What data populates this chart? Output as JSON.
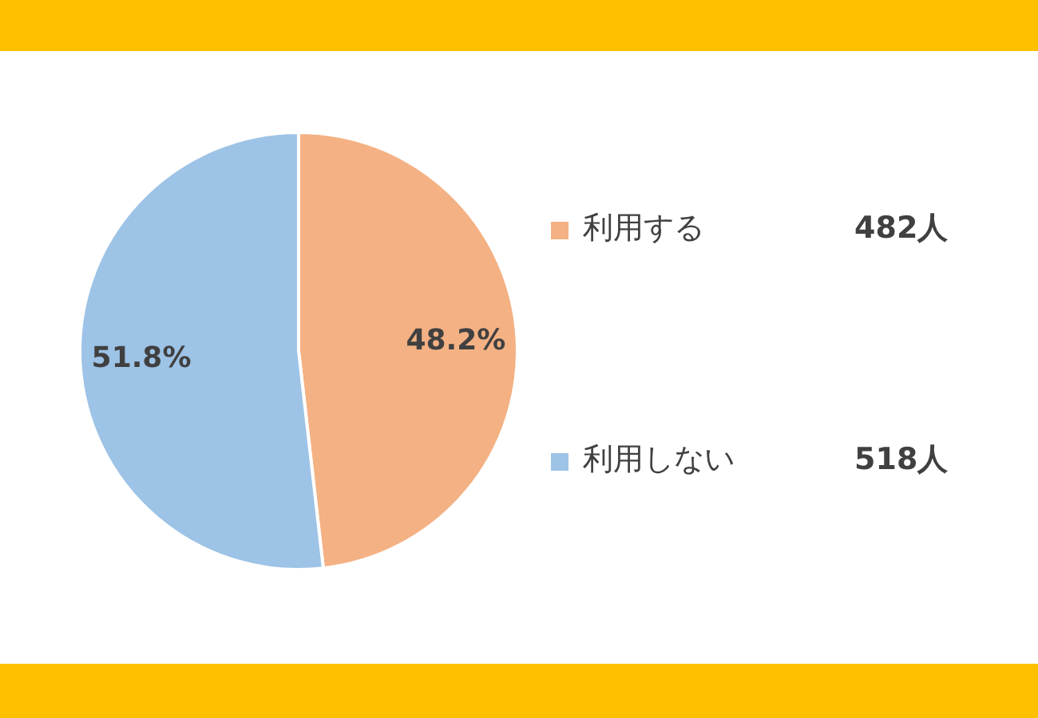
{
  "chart_data": {
    "type": "pie",
    "categories": [
      "利用する",
      "利用しない"
    ],
    "values": [
      48.2,
      51.8
    ],
    "colors": [
      "#f4b183",
      "#9dc3e6"
    ],
    "value_labels": [
      "48.2%",
      "51.8%"
    ],
    "legend": "right",
    "annotations": [
      "482人",
      "518人"
    ]
  }
}
